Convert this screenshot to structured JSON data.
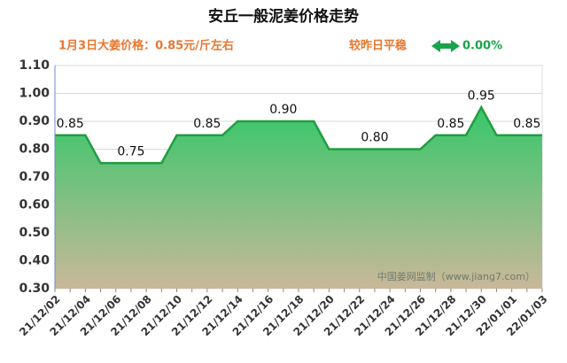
{
  "chart_data": {
    "type": "area",
    "title": "安丘一般泥姜价格走势",
    "subtitle": "1月3日大姜价格：0.85元/斤左右",
    "change_label": "较昨日平稳",
    "change_value": "0.00%",
    "watermark": "中国姜网监制（www.jiang7.com）",
    "categories": [
      "21/12/02",
      null,
      "21/12/04",
      null,
      "21/12/06",
      null,
      "21/12/08",
      null,
      "21/12/10",
      null,
      "21/12/12",
      null,
      "21/12/14",
      null,
      "21/12/16",
      null,
      "21/12/18",
      null,
      "21/12/20",
      null,
      "21/12/22",
      null,
      "21/12/24",
      null,
      "21/12/26",
      null,
      "21/12/28",
      null,
      "21/12/30",
      null,
      "22/01/01",
      null,
      "22/01/03"
    ],
    "values": [
      0.85,
      0.85,
      0.85,
      0.75,
      0.75,
      0.75,
      0.75,
      0.75,
      0.85,
      0.85,
      0.85,
      0.85,
      0.9,
      0.9,
      0.9,
      0.9,
      0.9,
      0.9,
      0.8,
      0.8,
      0.8,
      0.8,
      0.8,
      0.8,
      0.8,
      0.85,
      0.85,
      0.85,
      0.95,
      0.85,
      0.85,
      0.85,
      0.85
    ],
    "value_labels": [
      null,
      "0.85",
      null,
      null,
      null,
      "0.75",
      null,
      null,
      null,
      null,
      "0.85",
      null,
      null,
      null,
      null,
      "0.90",
      null,
      null,
      null,
      null,
      null,
      "0.80",
      null,
      null,
      null,
      null,
      "0.85",
      null,
      "0.95",
      null,
      null,
      "0.85",
      null
    ],
    "color": "#1f9e40",
    "ylim": [
      0.3,
      1.1
    ],
    "yticks": [
      {
        "value": 0.3,
        "label": "0.30"
      },
      {
        "value": 0.4,
        "label": "0.40"
      },
      {
        "value": 0.5,
        "label": "0.50"
      },
      {
        "value": 0.6,
        "label": "0.60"
      },
      {
        "value": 0.7,
        "label": "0.70"
      },
      {
        "value": 0.8,
        "label": "0.80"
      },
      {
        "value": 0.9,
        "label": "0.90"
      },
      {
        "value": 1.0,
        "label": "1.00"
      },
      {
        "value": 1.1,
        "label": "1.10"
      }
    ],
    "grid": true
  }
}
